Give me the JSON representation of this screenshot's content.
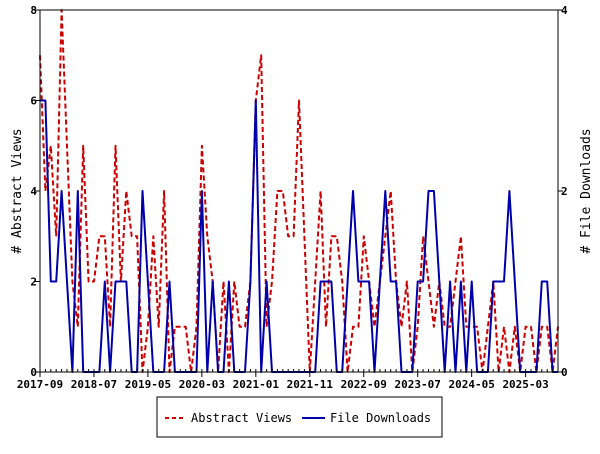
{
  "chart_data": {
    "type": "line",
    "title": "",
    "xlabel": "",
    "ylabel_left": "# Abstract Views",
    "ylabel_right": "# File Downloads",
    "ylim_left": [
      0,
      8
    ],
    "ylim_right": [
      0,
      4
    ],
    "yticks_left": [
      "0",
      "2",
      "4",
      "6",
      "8"
    ],
    "yticks_right": [
      "0",
      "2",
      "4"
    ],
    "x_start": "2017-09",
    "x_end": "2025-09",
    "x_tick_labels": [
      "2017-09",
      "2018-07",
      "2019-05",
      "2020-03",
      "2021-01",
      "2021-11",
      "2022-09",
      "2023-07",
      "2024-05",
      "2025-03"
    ],
    "legend_position": "bottom-center",
    "grid": false,
    "series": [
      {
        "name": "Abstract Views",
        "axis": "left",
        "color": "#cc0000",
        "style": "dashed",
        "x": [
          "2017-09",
          "2017-10",
          "2017-11",
          "2017-12",
          "2018-01",
          "2018-02",
          "2018-03",
          "2018-04",
          "2018-05",
          "2018-06",
          "2018-07",
          "2018-08",
          "2018-09",
          "2018-10",
          "2018-11",
          "2018-12",
          "2019-01",
          "2019-02",
          "2019-03",
          "2019-04",
          "2019-05",
          "2019-06",
          "2019-07",
          "2019-08",
          "2019-09",
          "2019-10",
          "2019-11",
          "2019-12",
          "2020-01",
          "2020-02",
          "2020-03",
          "2020-04",
          "2020-05",
          "2020-06",
          "2020-07",
          "2020-08",
          "2020-09",
          "2020-10",
          "2020-11",
          "2020-12",
          "2021-01",
          "2021-02",
          "2021-03",
          "2021-04",
          "2021-05",
          "2021-06",
          "2021-07",
          "2021-08",
          "2021-09",
          "2021-10",
          "2021-11",
          "2021-12",
          "2022-01",
          "2022-02",
          "2022-03",
          "2022-04",
          "2022-05",
          "2022-06",
          "2022-07",
          "2022-08",
          "2022-09",
          "2022-10",
          "2022-11",
          "2022-12",
          "2023-01",
          "2023-02",
          "2023-03",
          "2023-04",
          "2023-05",
          "2023-06",
          "2023-07",
          "2023-08",
          "2023-09",
          "2023-10",
          "2023-11",
          "2023-12",
          "2024-01",
          "2024-02",
          "2024-03",
          "2024-04",
          "2024-05",
          "2024-06",
          "2024-07",
          "2024-08",
          "2024-09",
          "2024-10",
          "2024-11",
          "2024-12",
          "2025-01",
          "2025-02",
          "2025-03",
          "2025-04",
          "2025-05",
          "2025-06",
          "2025-07",
          "2025-08",
          "2025-09"
        ],
        "values": [
          7,
          4,
          5,
          3,
          8,
          5,
          2,
          1,
          5,
          2,
          2,
          3,
          3,
          1,
          5,
          2,
          4,
          3,
          3,
          0,
          1,
          3,
          1,
          4,
          0,
          1,
          1,
          1,
          0,
          1,
          5,
          3,
          2,
          0,
          2,
          0,
          2,
          1,
          1,
          2,
          6,
          7,
          1,
          2,
          4,
          4,
          3,
          3,
          6,
          3,
          0,
          2,
          4,
          1,
          3,
          3,
          2,
          0,
          1,
          1,
          3,
          2,
          1,
          2,
          3,
          4,
          2,
          1,
          2,
          0,
          1,
          3,
          2,
          1,
          2,
          1,
          1,
          2,
          3,
          1,
          1,
          1,
          0,
          1,
          2,
          0,
          1,
          0,
          1,
          0,
          1,
          1,
          0,
          1,
          1,
          0,
          1
        ]
      },
      {
        "name": "File Downloads",
        "axis": "right",
        "color": "#0000aa",
        "style": "solid",
        "x": [
          "2017-09",
          "2017-10",
          "2017-11",
          "2017-12",
          "2018-01",
          "2018-02",
          "2018-03",
          "2018-04",
          "2018-05",
          "2018-06",
          "2018-07",
          "2018-08",
          "2018-09",
          "2018-10",
          "2018-11",
          "2018-12",
          "2019-01",
          "2019-02",
          "2019-03",
          "2019-04",
          "2019-05",
          "2019-06",
          "2019-07",
          "2019-08",
          "2019-09",
          "2019-10",
          "2019-11",
          "2019-12",
          "2020-01",
          "2020-02",
          "2020-03",
          "2020-04",
          "2020-05",
          "2020-06",
          "2020-07",
          "2020-08",
          "2020-09",
          "2020-10",
          "2020-11",
          "2020-12",
          "2021-01",
          "2021-02",
          "2021-03",
          "2021-04",
          "2021-05",
          "2021-06",
          "2021-07",
          "2021-08",
          "2021-09",
          "2021-10",
          "2021-11",
          "2021-12",
          "2022-01",
          "2022-02",
          "2022-03",
          "2022-04",
          "2022-05",
          "2022-06",
          "2022-07",
          "2022-08",
          "2022-09",
          "2022-10",
          "2022-11",
          "2022-12",
          "2023-01",
          "2023-02",
          "2023-03",
          "2023-04",
          "2023-05",
          "2023-06",
          "2023-07",
          "2023-08",
          "2023-09",
          "2023-10",
          "2023-11",
          "2023-12",
          "2024-01",
          "2024-02",
          "2024-03",
          "2024-04",
          "2024-05",
          "2024-06",
          "2024-07",
          "2024-08",
          "2024-09",
          "2024-10",
          "2024-11",
          "2024-12",
          "2025-01",
          "2025-02",
          "2025-03",
          "2025-04",
          "2025-05",
          "2025-06",
          "2025-07",
          "2025-08",
          "2025-09"
        ],
        "values": [
          3,
          3,
          1,
          1,
          2,
          1,
          0,
          2,
          0,
          0,
          0,
          0,
          1,
          0,
          1,
          1,
          1,
          0,
          0,
          2,
          1,
          0,
          0,
          0,
          1,
          0,
          0,
          0,
          0,
          0,
          2,
          0,
          1,
          0,
          0,
          1,
          0,
          0,
          0,
          1,
          3,
          0,
          1,
          0,
          0,
          0,
          0,
          0,
          0,
          0,
          0,
          0,
          1,
          1,
          1,
          0,
          0,
          1,
          2,
          1,
          1,
          1,
          0,
          1,
          2,
          1,
          1,
          0,
          0,
          0,
          1,
          1,
          2,
          2,
          1,
          0,
          1,
          0,
          1,
          0,
          1,
          0,
          0,
          0,
          1,
          1,
          1,
          2,
          1,
          0,
          0,
          0,
          0,
          1,
          1,
          0,
          0
        ]
      }
    ]
  }
}
